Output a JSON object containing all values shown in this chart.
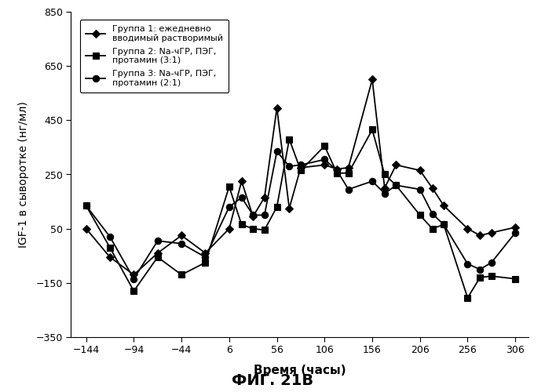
{
  "title": "ФИГ. 21В",
  "xlabel": "Время (часы)",
  "ylabel": "IGF-1 в сыворотке (нг/мл)",
  "ylim": [
    -350,
    850
  ],
  "yticks": [
    -350,
    -150,
    50,
    250,
    450,
    650,
    850
  ],
  "xticks": [
    -144,
    -94,
    -44,
    6,
    56,
    106,
    156,
    206,
    256,
    306
  ],
  "xlim": [
    -160,
    320
  ],
  "group1": {
    "label": "Группа 1: ежедневно\nвводимый растворимый",
    "x": [
      -144,
      -119,
      -94,
      -69,
      -44,
      -19,
      6,
      19,
      31,
      43,
      56,
      69,
      81,
      106,
      119,
      131,
      156,
      169,
      181,
      206,
      219,
      231,
      256,
      269,
      281,
      306
    ],
    "y": [
      50,
      -55,
      -120,
      -40,
      25,
      -40,
      50,
      225,
      95,
      165,
      495,
      125,
      275,
      285,
      270,
      275,
      600,
      200,
      285,
      265,
      200,
      135,
      50,
      25,
      35,
      55
    ],
    "marker": "D",
    "markersize": 5
  },
  "group2": {
    "label": "Группа 2: Na-чГР, ПЭГ,\nпротамин (3:1)",
    "x": [
      -144,
      -119,
      -94,
      -69,
      -44,
      -19,
      6,
      19,
      31,
      43,
      56,
      69,
      81,
      106,
      119,
      131,
      156,
      169,
      181,
      206,
      219,
      231,
      256,
      269,
      281,
      306
    ],
    "y": [
      135,
      -20,
      -180,
      -55,
      -120,
      -75,
      205,
      65,
      50,
      45,
      130,
      380,
      265,
      355,
      255,
      255,
      415,
      250,
      210,
      100,
      50,
      65,
      -205,
      -130,
      -125,
      -135
    ],
    "marker": "s",
    "markersize": 6
  },
  "group3": {
    "label": "Группа 3: Na-чГР, ПЭГ,\nпротамин (2:1)",
    "x": [
      -144,
      -119,
      -94,
      -69,
      -44,
      -19,
      6,
      19,
      31,
      43,
      56,
      69,
      81,
      106,
      119,
      131,
      156,
      169,
      181,
      206,
      219,
      231,
      256,
      269,
      281,
      306
    ],
    "y": [
      135,
      20,
      -135,
      5,
      -5,
      -55,
      130,
      165,
      100,
      100,
      335,
      280,
      285,
      305,
      265,
      195,
      225,
      180,
      210,
      195,
      105,
      65,
      -80,
      -100,
      -75,
      35
    ],
    "marker": "o",
    "markersize": 6
  },
  "background_color": "#ffffff",
  "line_color": "#000000",
  "linewidth": 1.3,
  "tick_fontsize": 9,
  "ylabel_fontsize": 10,
  "xlabel_fontsize": 11,
  "legend_fontsize": 8,
  "title_fontsize": 14
}
